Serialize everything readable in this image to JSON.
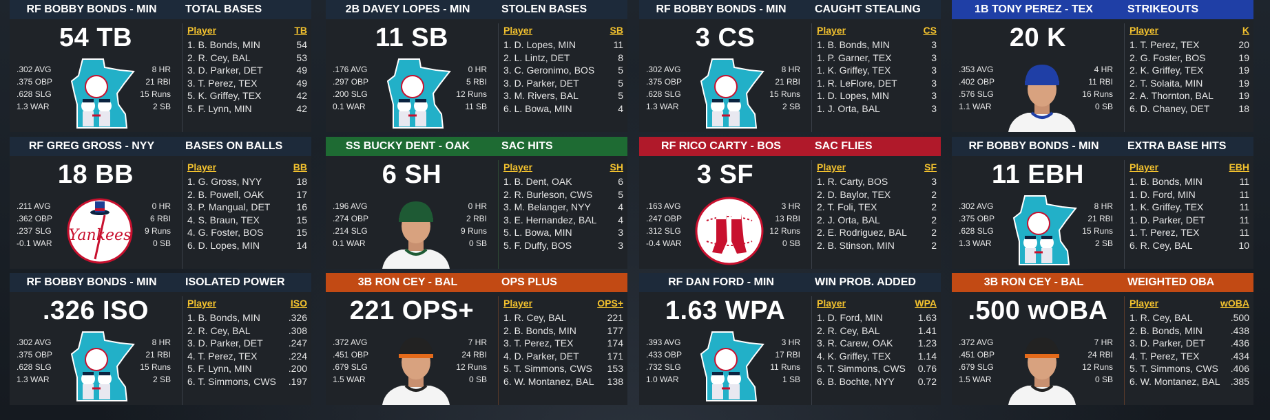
{
  "cards": [
    {
      "header_left": "RF BOBBY BONDS - MIN",
      "header_right": "TOTAL BASES",
      "big": "54 TB",
      "stats_left": [
        ".302 AVG",
        ".375 OBP",
        ".628 SLG",
        "1.3 WAR"
      ],
      "stats_right": [
        "8 HR",
        "21 RBI",
        "15 Runs",
        "2 SB"
      ],
      "col_player": "Player",
      "col_stat": "TB",
      "rows": [
        [
          "1. B. Bonds, MIN",
          "54"
        ],
        [
          "2. R. Cey, BAL",
          "53"
        ],
        [
          "3. D. Parker, DET",
          "49"
        ],
        [
          "3. T. Perez, TEX",
          "49"
        ],
        [
          "5. K. Griffey, TEX",
          "42"
        ],
        [
          "5. F. Lynn, MIN",
          "42"
        ]
      ],
      "image": "minnesota-logo",
      "header_color": "#1d2a3a"
    },
    {
      "header_left": "2B DAVEY LOPES - MIN",
      "header_right": "STOLEN BASES",
      "big": "11 SB",
      "stats_left": [
        ".176 AVG",
        ".297 OBP",
        ".200 SLG",
        "0.1 WAR"
      ],
      "stats_right": [
        "0 HR",
        "5 RBI",
        "12 Runs",
        "11 SB"
      ],
      "col_player": "Player",
      "col_stat": "SB",
      "rows": [
        [
          "1. D. Lopes, MIN",
          "11"
        ],
        [
          "2. L. Lintz, DET",
          "8"
        ],
        [
          "3. C. Geronimo, BOS",
          "5"
        ],
        [
          "3. D. Parker, DET",
          "5"
        ],
        [
          "3. M. Rivers, BAL",
          "5"
        ],
        [
          "6. L. Bowa, MIN",
          "4"
        ]
      ],
      "image": "minnesota-logo",
      "header_color": "#1d2a3a"
    },
    {
      "header_left": "RF BOBBY BONDS - MIN",
      "header_right": "CAUGHT STEALING",
      "big": "3 CS",
      "stats_left": [
        ".302 AVG",
        ".375 OBP",
        ".628 SLG",
        "1.3 WAR"
      ],
      "stats_right": [
        "8 HR",
        "21 RBI",
        "15 Runs",
        "2 SB"
      ],
      "col_player": "Player",
      "col_stat": "CS",
      "rows": [
        [
          "1. B. Bonds, MIN",
          "3"
        ],
        [
          "1. P. Garner, TEX",
          "3"
        ],
        [
          "1. K. Griffey, TEX",
          "3"
        ],
        [
          "1. R. LeFlore, DET",
          "3"
        ],
        [
          "1. D. Lopes, MIN",
          "3"
        ],
        [
          "1. J. Orta, BAL",
          "3"
        ]
      ],
      "image": "minnesota-logo",
      "header_color": "#1d2a3a"
    },
    {
      "header_left": "1B TONY PEREZ - TEX",
      "header_right": "STRIKEOUTS",
      "big": "20 K",
      "stats_left": [
        ".353 AVG",
        ".402 OBP",
        ".576 SLG",
        "1.1 WAR"
      ],
      "stats_right": [
        "4 HR",
        "11 RBI",
        "16 Runs",
        "0 SB"
      ],
      "col_player": "Player",
      "col_stat": "K",
      "rows": [
        [
          "1. T. Perez, TEX",
          "20"
        ],
        [
          "2. G. Foster, BOS",
          "19"
        ],
        [
          "2. K. Griffey, TEX",
          "19"
        ],
        [
          "2. T. Solaita, MIN",
          "19"
        ],
        [
          "2. A. Thornton, BAL",
          "19"
        ],
        [
          "6. D. Chaney, DET",
          "18"
        ]
      ],
      "image": "player-rangers",
      "header_color": "#1f3fa6"
    },
    {
      "header_left": "RF GREG GROSS - NYY",
      "header_right": "BASES ON BALLS",
      "big": "18 BB",
      "stats_left": [
        ".211 AVG",
        ".362 OBP",
        ".237 SLG",
        "-0.1 WAR"
      ],
      "stats_right": [
        "0 HR",
        "6 RBI",
        "9 Runs",
        "0 SB"
      ],
      "col_player": "Player",
      "col_stat": "BB",
      "rows": [
        [
          "1. G. Gross, NYY",
          "18"
        ],
        [
          "2. B. Powell, OAK",
          "17"
        ],
        [
          "3. P. Mangual, DET",
          "16"
        ],
        [
          "4. S. Braun, TEX",
          "15"
        ],
        [
          "4. G. Foster, BOS",
          "15"
        ],
        [
          "6. D. Lopes, MIN",
          "14"
        ]
      ],
      "image": "yankees-logo",
      "header_color": "#1d2a3a"
    },
    {
      "header_left": "SS BUCKY DENT - OAK",
      "header_right": "SAC HITS",
      "big": "6 SH",
      "stats_left": [
        ".196 AVG",
        ".274 OBP",
        ".214 SLG",
        "0.1 WAR"
      ],
      "stats_right": [
        "0 HR",
        "2 RBI",
        "9 Runs",
        "0 SB"
      ],
      "col_player": "Player",
      "col_stat": "SH",
      "rows": [
        [
          "1. B. Dent, OAK",
          "6"
        ],
        [
          "2. R. Burleson, CWS",
          "5"
        ],
        [
          "3. M. Belanger, NYY",
          "4"
        ],
        [
          "3. E. Hernandez, BAL",
          "4"
        ],
        [
          "5. L. Bowa, MIN",
          "3"
        ],
        [
          "5. F. Duffy, BOS",
          "3"
        ]
      ],
      "image": "player-athletics",
      "header_color": "#1e6b33"
    },
    {
      "header_left": "RF RICO CARTY - BOS",
      "header_right": "SAC FLIES",
      "big": "3 SF",
      "stats_left": [
        ".163 AVG",
        ".247 OBP",
        ".312 SLG",
        "-0.4 WAR"
      ],
      "stats_right": [
        "3 HR",
        "13 RBI",
        "12 Runs",
        "0 SB"
      ],
      "col_player": "Player",
      "col_stat": "SF",
      "rows": [
        [
          "1. R. Carty, BOS",
          "3"
        ],
        [
          "2. D. Baylor, TEX",
          "2"
        ],
        [
          "2. T. Foli, TEX",
          "2"
        ],
        [
          "2. J. Orta, BAL",
          "2"
        ],
        [
          "2. E. Rodriguez, BAL",
          "2"
        ],
        [
          "2. B. Stinson, MIN",
          "2"
        ]
      ],
      "image": "redsox-logo",
      "header_color": "#b0192a"
    },
    {
      "header_left": "RF BOBBY BONDS - MIN",
      "header_right": "EXTRA BASE HITS",
      "big": "11 EBH",
      "stats_left": [
        ".302 AVG",
        ".375 OBP",
        ".628 SLG",
        "1.3 WAR"
      ],
      "stats_right": [
        "8 HR",
        "21 RBI",
        "15 Runs",
        "2 SB"
      ],
      "col_player": "Player",
      "col_stat": "EBH",
      "rows": [
        [
          "1. B. Bonds, MIN",
          "11"
        ],
        [
          "1. D. Ford, MIN",
          "11"
        ],
        [
          "1. K. Griffey, TEX",
          "11"
        ],
        [
          "1. D. Parker, DET",
          "11"
        ],
        [
          "1. T. Perez, TEX",
          "11"
        ],
        [
          "6. R. Cey, BAL",
          "10"
        ]
      ],
      "image": "minnesota-logo",
      "header_color": "#1d2a3a"
    },
    {
      "header_left": "RF BOBBY BONDS - MIN",
      "header_right": "ISOLATED POWER",
      "big": ".326 ISO",
      "stats_left": [
        ".302 AVG",
        ".375 OBP",
        ".628 SLG",
        "1.3 WAR"
      ],
      "stats_right": [
        "8 HR",
        "21 RBI",
        "15 Runs",
        "2 SB"
      ],
      "col_player": "Player",
      "col_stat": "ISO",
      "rows": [
        [
          "1. B. Bonds, MIN",
          ".326"
        ],
        [
          "2. R. Cey, BAL",
          ".308"
        ],
        [
          "3. D. Parker, DET",
          ".247"
        ],
        [
          "4. T. Perez, TEX",
          ".224"
        ],
        [
          "5. F. Lynn, MIN",
          ".200"
        ],
        [
          "6. T. Simmons, CWS",
          ".197"
        ]
      ],
      "image": "minnesota-logo",
      "header_color": "#1d2a3a"
    },
    {
      "header_left": "3B RON CEY - BAL",
      "header_right": "OPS PLUS",
      "big": "221 OPS+",
      "stats_left": [
        ".372 AVG",
        ".451 OBP",
        ".679 SLG",
        "1.5 WAR"
      ],
      "stats_right": [
        "7 HR",
        "24 RBI",
        "12 Runs",
        "0 SB"
      ],
      "col_player": "Player",
      "col_stat": "OPS+",
      "rows": [
        [
          "1. R. Cey, BAL",
          "221"
        ],
        [
          "2. B. Bonds, MIN",
          "177"
        ],
        [
          "3. T. Perez, TEX",
          "174"
        ],
        [
          "4. D. Parker, DET",
          "171"
        ],
        [
          "5. T. Simmons, CWS",
          "153"
        ],
        [
          "6. W. Montanez, BAL",
          "138"
        ]
      ],
      "image": "player-orioles",
      "header_color": "#c24a14"
    },
    {
      "header_left": "RF DAN FORD - MIN",
      "header_right": "WIN PROB. ADDED",
      "big": "1.63 WPA",
      "stats_left": [
        ".393 AVG",
        ".433 OBP",
        ".732 SLG",
        "1.0 WAR"
      ],
      "stats_right": [
        "3 HR",
        "17 RBI",
        "11 Runs",
        "1 SB"
      ],
      "col_player": "Player",
      "col_stat": "WPA",
      "rows": [
        [
          "1. D. Ford, MIN",
          "1.63"
        ],
        [
          "2. R. Cey, BAL",
          "1.41"
        ],
        [
          "3. R. Carew, OAK",
          "1.23"
        ],
        [
          "4. K. Griffey, TEX",
          "1.14"
        ],
        [
          "5. T. Simmons, CWS",
          "0.76"
        ],
        [
          "6. B. Bochte, NYY",
          "0.72"
        ]
      ],
      "image": "minnesota-logo",
      "header_color": "#1d2a3a"
    },
    {
      "header_left": "3B RON CEY - BAL",
      "header_right": "WEIGHTED OBA",
      "big": ".500 wOBA",
      "stats_left": [
        ".372 AVG",
        ".451 OBP",
        ".679 SLG",
        "1.5 WAR"
      ],
      "stats_right": [
        "7 HR",
        "24 RBI",
        "12 Runs",
        "0 SB"
      ],
      "col_player": "Player",
      "col_stat": "wOBA",
      "rows": [
        [
          "1. R. Cey, BAL",
          ".500"
        ],
        [
          "2. B. Bonds, MIN",
          ".438"
        ],
        [
          "3. D. Parker, DET",
          ".436"
        ],
        [
          "4. T. Perez, TEX",
          ".434"
        ],
        [
          "5. T. Simmons, CWS",
          ".406"
        ],
        [
          "6. W. Montanez, BAL",
          ".385"
        ]
      ],
      "image": "player-orioles",
      "header_color": "#c24a14"
    }
  ]
}
